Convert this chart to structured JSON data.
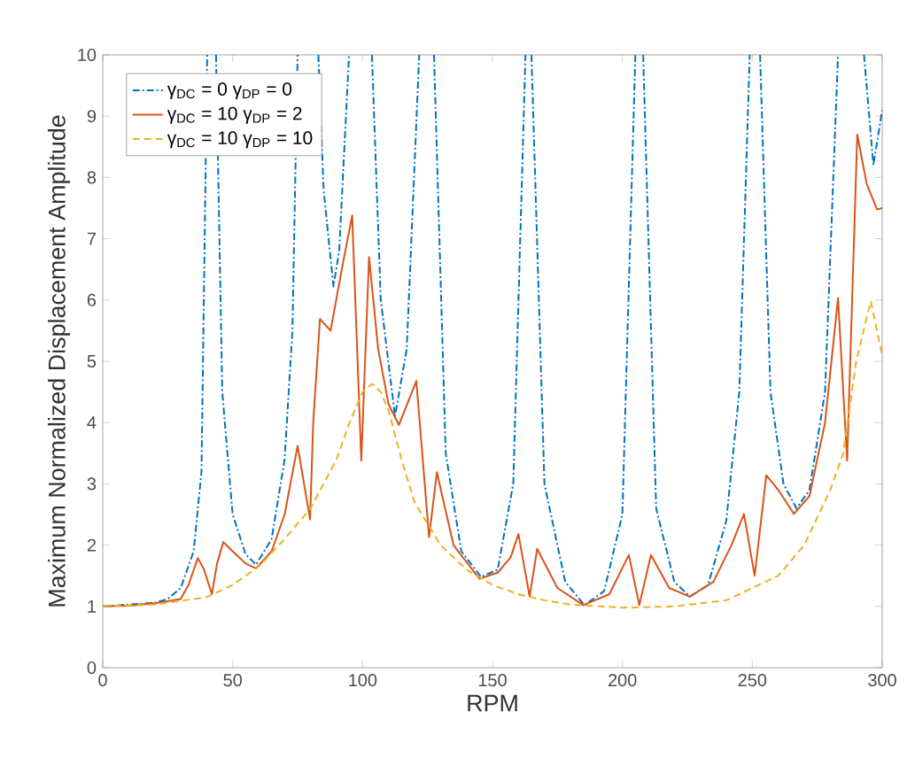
{
  "chart_data": {
    "type": "line",
    "xlabel": "RPM",
    "ylabel": "Maximum Normalized Displacement Amplitude",
    "xlim": [
      0,
      300
    ],
    "ylim": [
      0,
      10
    ],
    "xticks": [
      0,
      50,
      100,
      150,
      200,
      250,
      300
    ],
    "yticks": [
      0,
      1,
      2,
      3,
      4,
      5,
      6,
      7,
      8,
      9,
      10
    ],
    "grid": false,
    "legend": "top left",
    "marker": "none",
    "series": [
      {
        "name": "γ$_{DC}$ = 0 γ$_{DP}$ = 0",
        "color": "#0072bd",
        "line_style": "dashdot",
        "x": [
          0,
          20,
          25,
          30,
          35,
          38,
          40.2,
          42,
          43.6,
          46,
          50,
          55,
          59,
          65,
          70,
          73,
          75,
          79,
          83,
          85,
          88.8,
          91,
          94.8,
          99,
          103.6,
          107,
          112.5,
          117,
          121.8,
          124.5,
          127.5,
          132,
          138,
          145.6,
          152,
          158,
          162.7,
          164,
          165,
          170,
          178,
          185.4,
          193,
          200,
          205,
          206.5,
          208,
          213,
          220,
          226,
          233,
          240,
          245,
          249,
          251,
          253,
          257,
          262,
          267,
          272,
          278,
          283,
          288,
          293,
          296.6,
          300
        ],
        "values": [
          1,
          1.06,
          1.12,
          1.3,
          1.9,
          3.2,
          10,
          null,
          10,
          4.5,
          2.5,
          1.85,
          1.68,
          2.1,
          3.4,
          5.5,
          10,
          null,
          10,
          7.8,
          6.22,
          6.8,
          10,
          null,
          10,
          6,
          4.1,
          5.2,
          10,
          null,
          10,
          3.5,
          1.9,
          1.48,
          1.6,
          3.0,
          10,
          null,
          10,
          3,
          1.4,
          1.02,
          1.25,
          2.5,
          10,
          null,
          10,
          2.6,
          1.4,
          1.16,
          1.35,
          2.4,
          4.5,
          10,
          null,
          10,
          4.5,
          3.0,
          2.6,
          2.9,
          4.5,
          10,
          null,
          10,
          8.2,
          9.1
        ]
      },
      {
        "name": "γ$_{DC}$ = 10 γ$_{DP}$ = 2",
        "color": "#d95319",
        "line_style": "solid",
        "x": [
          0,
          10,
          20,
          30,
          33,
          36.6,
          39,
          42,
          44,
          46.4,
          50,
          55,
          59,
          65,
          70,
          75,
          79.8,
          81,
          83.6,
          87.7,
          92,
          96,
          99.5,
          102.5,
          106,
          110,
          114,
          120.7,
          125.6,
          128.6,
          135,
          145,
          152,
          157,
          160,
          164.3,
          167.2,
          175,
          185,
          195,
          202.5,
          206.5,
          211,
          218,
          226,
          235,
          242,
          246.8,
          250.9,
          255.4,
          260,
          266,
          272,
          278,
          283,
          286.5,
          290.4,
          294,
          298,
          300
        ],
        "values": [
          1,
          1.01,
          1.05,
          1.12,
          1.35,
          1.79,
          1.6,
          1.2,
          1.7,
          2.05,
          1.9,
          1.7,
          1.62,
          1.9,
          2.5,
          3.62,
          2.42,
          4.0,
          5.69,
          5.5,
          6.5,
          7.38,
          3.38,
          6.7,
          5.2,
          4.3,
          3.96,
          4.68,
          2.13,
          3.19,
          2.0,
          1.45,
          1.55,
          1.8,
          2.18,
          1.16,
          1.94,
          1.3,
          1.02,
          1.2,
          1.84,
          1.02,
          1.84,
          1.3,
          1.16,
          1.4,
          2.0,
          2.51,
          1.5,
          3.14,
          2.9,
          2.51,
          2.8,
          4.0,
          6.03,
          3.38,
          8.7,
          7.9,
          7.48,
          7.5
        ]
      },
      {
        "name": "γ$_{DC}$ = 10 γ$_{DP}$ = 10",
        "color": "#edb120",
        "line_style": "dashed",
        "x": [
          0,
          20,
          40,
          50,
          60,
          70,
          80,
          90,
          95,
          100,
          103.6,
          107,
          110,
          115,
          120,
          130,
          140,
          150,
          160,
          170,
          180,
          200,
          220,
          240,
          260,
          270,
          280,
          285,
          290,
          295.6,
          300
        ],
        "values": [
          1,
          1.03,
          1.15,
          1.35,
          1.65,
          2.1,
          2.6,
          3.4,
          4.0,
          4.5,
          4.63,
          4.5,
          4.2,
          3.4,
          2.7,
          2.0,
          1.6,
          1.35,
          1.2,
          1.1,
          1.03,
          0.98,
          1.0,
          1.1,
          1.5,
          2.0,
          2.9,
          3.5,
          5.0,
          5.98,
          5.1
        ]
      }
    ]
  }
}
